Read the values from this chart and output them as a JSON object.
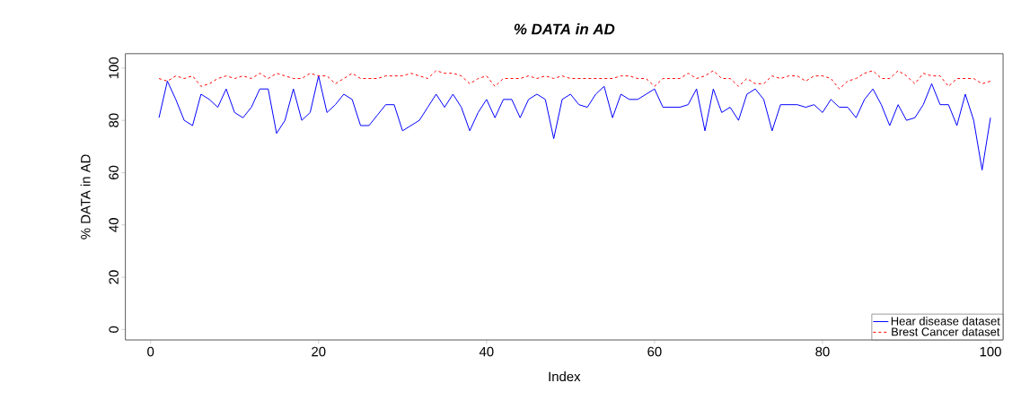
{
  "chart_data": {
    "type": "line",
    "title": "% DATA in AD",
    "xlabel": "Index",
    "ylabel": "% DATA in AD",
    "x": [
      1,
      2,
      3,
      4,
      5,
      6,
      7,
      8,
      9,
      10,
      11,
      12,
      13,
      14,
      15,
      16,
      17,
      18,
      19,
      20,
      21,
      22,
      23,
      24,
      25,
      26,
      27,
      28,
      29,
      30,
      31,
      32,
      33,
      34,
      35,
      36,
      37,
      38,
      39,
      40,
      41,
      42,
      43,
      44,
      45,
      46,
      47,
      48,
      49,
      50,
      51,
      52,
      53,
      54,
      55,
      56,
      57,
      58,
      59,
      60,
      61,
      62,
      63,
      64,
      65,
      66,
      67,
      68,
      69,
      70,
      71,
      72,
      73,
      74,
      75,
      76,
      77,
      78,
      79,
      80,
      81,
      82,
      83,
      84,
      85,
      86,
      87,
      88,
      89,
      90,
      91,
      92,
      93,
      94,
      95,
      96,
      97,
      98,
      99,
      100
    ],
    "series": [
      {
        "name": "Hear disease dataset",
        "color": "#0000ff",
        "line_style": "solid",
        "values": [
          81,
          95,
          88,
          80,
          78,
          90,
          88,
          85,
          92,
          83,
          81,
          85,
          92,
          92,
          75,
          80,
          92,
          80,
          83,
          97,
          83,
          86,
          90,
          88,
          78,
          78,
          82,
          86,
          86,
          76,
          78,
          80,
          85,
          90,
          85,
          90,
          85,
          76,
          83,
          88,
          81,
          88,
          88,
          81,
          88,
          90,
          88,
          73,
          88,
          90,
          86,
          85,
          90,
          93,
          81,
          90,
          88,
          88,
          90,
          92,
          85,
          85,
          85,
          86,
          92,
          76,
          92,
          83,
          85,
          80,
          90,
          92,
          88,
          76,
          86,
          86,
          86,
          85,
          86,
          83,
          88,
          85,
          85,
          81,
          88,
          92,
          86,
          78,
          86,
          80,
          81,
          86,
          94,
          86,
          86,
          78,
          90,
          80,
          61,
          81
        ]
      },
      {
        "name": "Brest Cancer dataset",
        "color": "#ff0000",
        "line_style": "dashed",
        "values": [
          96,
          95,
          97,
          96,
          97,
          93,
          94,
          96,
          97,
          96,
          97,
          96,
          98,
          96,
          98,
          97,
          96,
          96,
          98,
          97,
          97,
          94,
          96,
          98,
          96,
          96,
          96,
          97,
          97,
          97,
          98,
          97,
          96,
          99,
          98,
          98,
          97,
          94,
          96,
          97,
          93,
          96,
          96,
          96,
          97,
          96,
          97,
          96,
          97,
          96,
          96,
          96,
          96,
          96,
          96,
          97,
          97,
          96,
          96,
          93,
          96,
          96,
          96,
          98,
          96,
          97,
          99,
          96,
          96,
          93,
          96,
          94,
          94,
          97,
          96,
          97,
          97,
          95,
          97,
          97,
          96,
          92,
          95,
          96,
          98,
          99,
          96,
          96,
          99,
          97,
          94,
          98,
          97,
          97,
          93,
          96,
          96,
          96,
          94,
          95
        ]
      }
    ],
    "xlim": [
      -3,
      101.5
    ],
    "ylim": [
      -4,
      105.5
    ],
    "xticks": [
      0,
      20,
      40,
      60,
      80,
      100
    ],
    "yticks": [
      0,
      20,
      40,
      60,
      80,
      100
    ],
    "legend": "bottom right",
    "grid": false
  }
}
